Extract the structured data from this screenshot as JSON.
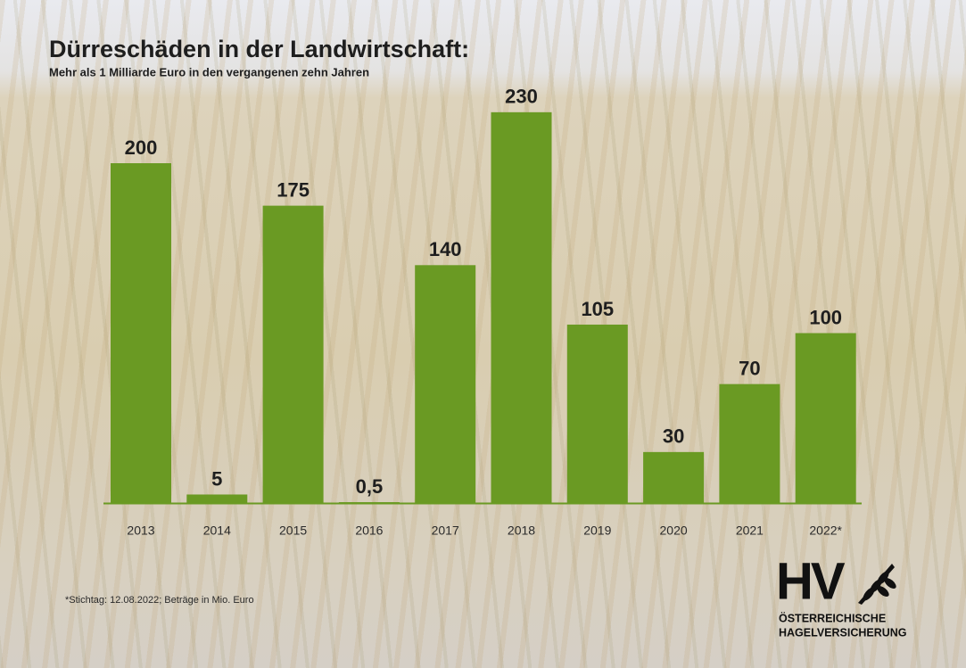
{
  "chart_data": {
    "type": "bar",
    "title": "Dürreschäden in der Landwirtschaft:",
    "subtitle": "Mehr als 1 Milliarde Euro in den vergangenen zehn Jahren",
    "categories": [
      "2013",
      "2014",
      "2015",
      "2016",
      "2017",
      "2018",
      "2019",
      "2020",
      "2021",
      "2022*"
    ],
    "values": [
      200,
      5,
      175,
      0.5,
      140,
      230,
      105,
      30,
      70,
      100
    ],
    "value_labels": [
      "200",
      "5",
      "175",
      "0,5",
      "140",
      "230",
      "105",
      "30",
      "70",
      "100"
    ],
    "color": "#6a9a23",
    "footnote": "*Stichtag: 12.08.2022; Beträge in Mio. Euro"
  },
  "logo": {
    "mark": "HV",
    "line1": "ÖSTERREICHISCHE",
    "line2": "HAGELVERSICHERUNG"
  }
}
